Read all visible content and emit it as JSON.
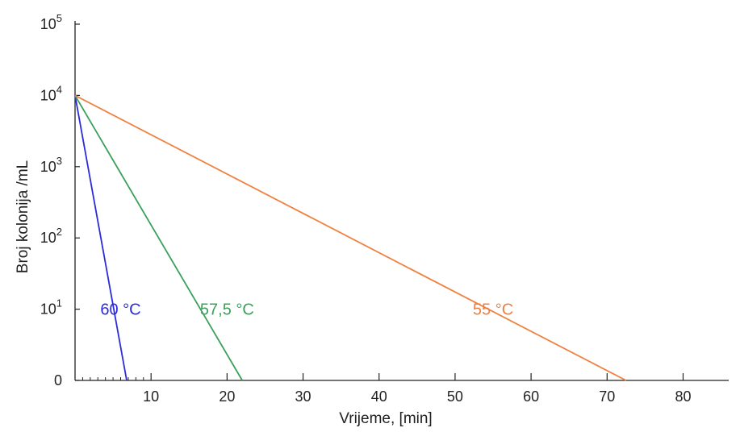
{
  "chart_data": {
    "type": "line",
    "xlabel": "Vrijeme, [min]",
    "ylabel": "Broj kolonija /mL",
    "xlim": [
      0,
      86
    ],
    "x_ticks": [
      10,
      20,
      30,
      40,
      50,
      60,
      70,
      80
    ],
    "x_minor_ticks": [
      1,
      2,
      3,
      4,
      5,
      6,
      7,
      8,
      9
    ],
    "y_scale": "log",
    "y_ticks": [
      {
        "value": 1,
        "base": "0",
        "exp": ""
      },
      {
        "value": 10,
        "base": "10",
        "exp": "1"
      },
      {
        "value": 100,
        "base": "10",
        "exp": "2"
      },
      {
        "value": 1000,
        "base": "10",
        "exp": "3"
      },
      {
        "value": 10000,
        "base": "10",
        "exp": "4"
      },
      {
        "value": 100000,
        "base": "10",
        "exp": "5"
      }
    ],
    "ylim": [
      1,
      100000
    ],
    "grid": false,
    "series": [
      {
        "name": "60 °C",
        "color": "#2b2bd9",
        "x": [
          0,
          6.8
        ],
        "y": [
          10000,
          1
        ],
        "label_at": [
          6,
          10
        ]
      },
      {
        "name": "57,5 °C",
        "color": "#3aa05a",
        "x": [
          0,
          22
        ],
        "y": [
          10000,
          1
        ],
        "label_at": [
          20,
          10
        ]
      },
      {
        "name": "55 °C",
        "color": "#f08040",
        "x": [
          0,
          72.5
        ],
        "y": [
          10000,
          1
        ],
        "label_at": [
          55,
          10
        ]
      }
    ]
  }
}
